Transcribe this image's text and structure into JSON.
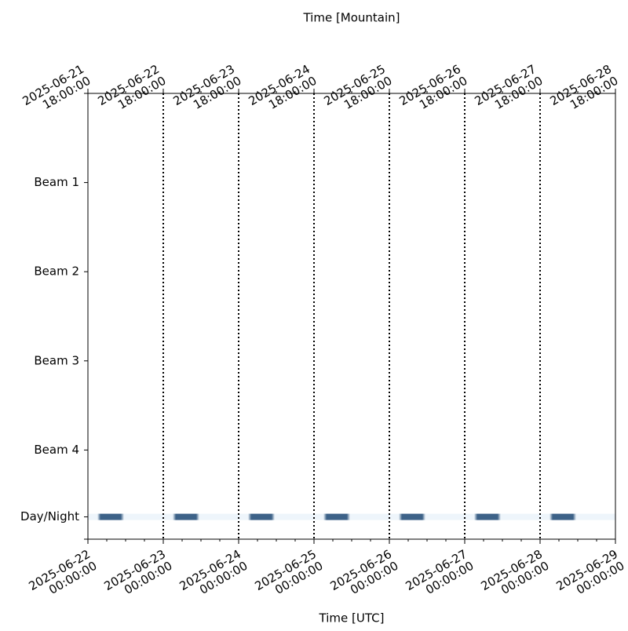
{
  "chart_data": {
    "type": "timeline",
    "xlabel": "Time [UTC]",
    "x2label": "Time [Mountain]",
    "xlim": [
      "2025-06-22 00:00:00",
      "2025-06-29 00:00:00"
    ],
    "xticks": [
      "2025-06-22 00:00:00",
      "2025-06-23 00:00:00",
      "2025-06-24 00:00:00",
      "2025-06-25 00:00:00",
      "2025-06-26 00:00:00",
      "2025-06-27 00:00:00",
      "2025-06-28 00:00:00",
      "2025-06-29 00:00:00"
    ],
    "x2ticks": [
      "2025-06-21 18:00:00",
      "2025-06-22 18:00:00",
      "2025-06-23 18:00:00",
      "2025-06-24 18:00:00",
      "2025-06-25 18:00:00",
      "2025-06-26 18:00:00",
      "2025-06-27 18:00:00",
      "2025-06-28 18:00:00"
    ],
    "ylim": [
      0,
      5
    ],
    "y_inverted": true,
    "yticks": [
      {
        "value": 1,
        "label": "Beam 1"
      },
      {
        "value": 2,
        "label": "Beam 2"
      },
      {
        "value": 3,
        "label": "Beam 3"
      },
      {
        "value": 4,
        "label": "Beam 4"
      },
      {
        "value": 4.75,
        "label": "Day/Night"
      }
    ],
    "vlines_style": "dotted",
    "day_color": "#eef5fb",
    "night_color": "#3d6288",
    "night": [
      {
        "start": "2025-06-22 03:00:00",
        "end": "2025-06-22 11:30:00"
      },
      {
        "start": "2025-06-23 03:00:00",
        "end": "2025-06-23 11:30:00"
      },
      {
        "start": "2025-06-24 03:00:00",
        "end": "2025-06-24 11:30:00"
      },
      {
        "start": "2025-06-25 03:00:00",
        "end": "2025-06-25 11:30:00"
      },
      {
        "start": "2025-06-26 03:00:00",
        "end": "2025-06-26 11:30:00"
      },
      {
        "start": "2025-06-27 03:00:00",
        "end": "2025-06-27 11:30:00"
      },
      {
        "start": "2025-06-28 03:00:00",
        "end": "2025-06-28 11:30:00"
      }
    ]
  }
}
